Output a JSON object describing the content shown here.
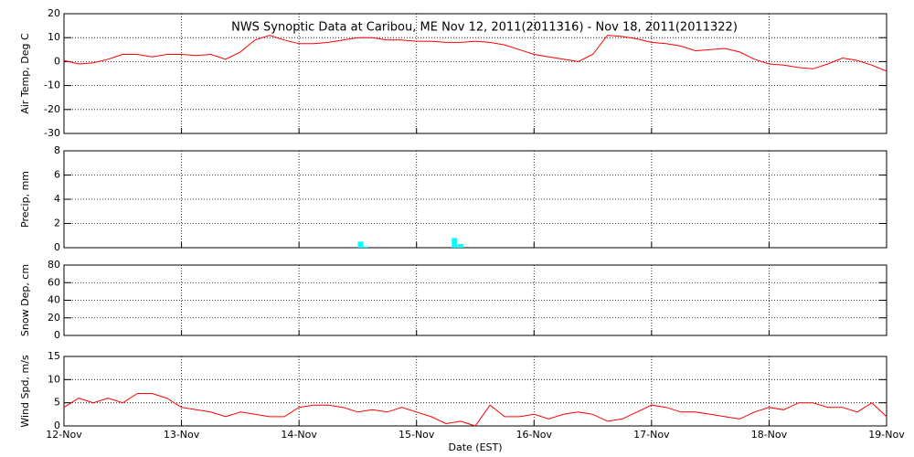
{
  "chart_data": [
    {
      "type": "line",
      "title": "NWS Synoptic Data at Caribou, ME   Nov 12, 2011(2011316) - Nov 18, 2011(2011322)",
      "ylabel": "Air Temp, Deg C",
      "color": "#ff0000",
      "xlim": [
        0,
        7
      ],
      "ylim": [
        -30,
        20
      ],
      "yticks": [
        -30,
        -20,
        -10,
        0,
        10,
        20
      ],
      "grid": true,
      "x": [
        0,
        0.125,
        0.25,
        0.375,
        0.5,
        0.625,
        0.75,
        0.875,
        1,
        1.125,
        1.25,
        1.375,
        1.5,
        1.625,
        1.75,
        1.875,
        2,
        2.125,
        2.25,
        2.375,
        2.5,
        2.625,
        2.75,
        2.875,
        3,
        3.125,
        3.25,
        3.375,
        3.5,
        3.625,
        3.75,
        3.875,
        4,
        4.125,
        4.25,
        4.375,
        4.5,
        4.625,
        4.75,
        4.875,
        5,
        5.125,
        5.25,
        5.375,
        5.5,
        5.625,
        5.75,
        5.875,
        6,
        6.125,
        6.25,
        6.375,
        6.5,
        6.625,
        6.75,
        6.875,
        7
      ],
      "values": [
        0.5,
        -1,
        -0.5,
        1,
        3,
        3,
        2,
        3,
        3,
        2.5,
        3,
        1,
        4,
        9,
        11,
        9,
        7.5,
        7.5,
        8,
        9,
        10,
        10,
        9,
        9,
        8.5,
        8.5,
        8,
        8,
        8.5,
        8,
        7,
        5,
        3,
        2,
        1,
        0,
        3,
        11,
        10.5,
        9.5,
        8,
        7.5,
        6.5,
        4.5,
        5,
        5.5,
        4,
        1,
        -1,
        -1.5,
        -2.5,
        -3,
        -1,
        1.5,
        0.5,
        -1.5,
        -4
      ]
    },
    {
      "type": "bar",
      "ylabel": "Precip, mm",
      "color": "#00ffff",
      "xlim": [
        0,
        7
      ],
      "ylim": [
        0,
        8
      ],
      "yticks": [
        0,
        2,
        4,
        6,
        8
      ],
      "grid": true,
      "x": [
        2.5,
        2.54,
        3.3,
        3.35
      ],
      "values": [
        0.5,
        0.1,
        0.8,
        0.3
      ]
    },
    {
      "type": "line",
      "ylabel": "Snow Dep, cm",
      "color": "#ff0000",
      "xlim": [
        0,
        7
      ],
      "ylim": [
        0,
        80
      ],
      "yticks": [
        0,
        20,
        40,
        60,
        80
      ],
      "grid": true
    },
    {
      "type": "line",
      "ylabel": "Wind Spd, m/s",
      "xlabel": "Date (EST)",
      "color": "#ff0000",
      "xlim": [
        0,
        7
      ],
      "ylim": [
        0,
        15
      ],
      "yticks": [
        0,
        5,
        10,
        15
      ],
      "grid": true,
      "xticks": [
        {
          "value": 0,
          "label": "12-Nov"
        },
        {
          "value": 1,
          "label": "13-Nov"
        },
        {
          "value": 2,
          "label": "14-Nov"
        },
        {
          "value": 3,
          "label": "15-Nov"
        },
        {
          "value": 4,
          "label": "16-Nov"
        },
        {
          "value": 5,
          "label": "17-Nov"
        },
        {
          "value": 6,
          "label": "18-Nov"
        },
        {
          "value": 7,
          "label": "19-Nov"
        }
      ],
      "x": [
        0,
        0.125,
        0.25,
        0.375,
        0.5,
        0.625,
        0.75,
        0.875,
        1,
        1.125,
        1.25,
        1.375,
        1.5,
        1.625,
        1.75,
        1.875,
        2,
        2.125,
        2.25,
        2.375,
        2.5,
        2.625,
        2.75,
        2.875,
        3,
        3.125,
        3.25,
        3.375,
        3.5,
        3.625,
        3.75,
        3.875,
        4,
        4.125,
        4.25,
        4.375,
        4.5,
        4.625,
        4.75,
        4.875,
        5,
        5.125,
        5.25,
        5.375,
        5.5,
        5.625,
        5.75,
        5.875,
        6,
        6.125,
        6.25,
        6.375,
        6.5,
        6.625,
        6.75,
        6.875,
        7
      ],
      "values": [
        4,
        6,
        5,
        6,
        5,
        7,
        7,
        6,
        4,
        3.5,
        3,
        2,
        3,
        2.5,
        2,
        2,
        4,
        4.5,
        4.5,
        4,
        3,
        3.5,
        3,
        4,
        3,
        2,
        0.5,
        1,
        0,
        4.5,
        2,
        2,
        2.5,
        1.5,
        2.5,
        3,
        2.5,
        1,
        1.5,
        3,
        4.5,
        4,
        3,
        3,
        2.5,
        2,
        1.5,
        3,
        4,
        3.5,
        5,
        5,
        4,
        4,
        3,
        5,
        2
      ]
    }
  ]
}
